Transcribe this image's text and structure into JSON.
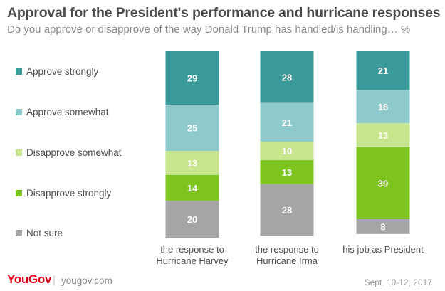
{
  "chart_data": {
    "type": "bar",
    "stacked": true,
    "orientation": "vertical",
    "title": "Approval for the President's performance and hurricane responses",
    "subtitle": "Do you approve or disapprove of the way Donald Trump has handled/is handling… %",
    "categories": [
      [
        "the response to",
        "Hurricane Harvey"
      ],
      [
        "the response to",
        "Hurricane Irma"
      ],
      [
        "his job as President"
      ]
    ],
    "series": [
      {
        "name": "Approve strongly",
        "color": "#3a9a9a",
        "label_color": "#ffffff",
        "values": [
          29,
          28,
          21
        ]
      },
      {
        "name": "Approve somewhat",
        "color": "#8ec9cc",
        "label_color": "#ffffff",
        "values": [
          25,
          21,
          18
        ]
      },
      {
        "name": "Disapprove somewhat",
        "color": "#c6e58d",
        "label_color": "#ffffff",
        "values": [
          13,
          10,
          13
        ]
      },
      {
        "name": "Disapprove strongly",
        "color": "#7dc41e",
        "label_color": "#ffffff",
        "values": [
          14,
          13,
          39
        ]
      },
      {
        "name": "Not sure",
        "color": "#a5a5a5",
        "label_color": "#ffffff",
        "values": [
          20,
          28,
          8
        ]
      }
    ],
    "legend_position": "left",
    "grid": false,
    "ylim": [
      0,
      101
    ]
  },
  "footer": {
    "logo": "YouGov",
    "url": "yougov.com",
    "date": "Sept. 10-12, 2017"
  }
}
